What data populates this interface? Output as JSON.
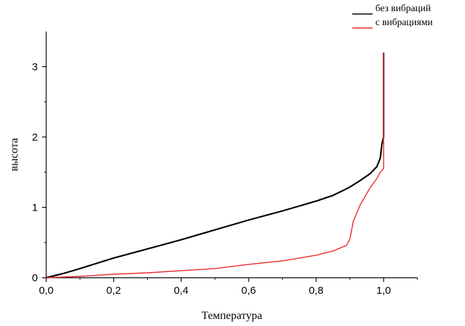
{
  "chart_data": {
    "type": "line",
    "title": "",
    "xlabel": "Температура",
    "ylabel": "высота",
    "xlim": [
      0,
      1.1
    ],
    "ylim": [
      0,
      3.5
    ],
    "x_ticks": [
      0,
      0.2,
      0.4,
      0.6,
      0.8,
      1.0
    ],
    "x_tick_labels": [
      "0,0",
      "0,2",
      "0,4",
      "0,6",
      "0,8",
      "1,0"
    ],
    "y_ticks": [
      0,
      1,
      2,
      3
    ],
    "y_tick_labels": [
      "0",
      "1",
      "2",
      "3"
    ],
    "grid": false,
    "legend_position": "top-right",
    "series": [
      {
        "name": "без вибраций",
        "color": "#000000",
        "points": [
          [
            0,
            0
          ],
          [
            0.05,
            0.06
          ],
          [
            0.1,
            0.13
          ],
          [
            0.2,
            0.28
          ],
          [
            0.3,
            0.41
          ],
          [
            0.4,
            0.54
          ],
          [
            0.5,
            0.68
          ],
          [
            0.6,
            0.82
          ],
          [
            0.7,
            0.95
          ],
          [
            0.8,
            1.09
          ],
          [
            0.85,
            1.17
          ],
          [
            0.88,
            1.24
          ],
          [
            0.9,
            1.29
          ],
          [
            0.93,
            1.38
          ],
          [
            0.96,
            1.48
          ],
          [
            0.98,
            1.58
          ],
          [
            0.99,
            1.7
          ],
          [
            0.995,
            1.9
          ],
          [
            1.0,
            2.0
          ],
          [
            1.0,
            3.2
          ]
        ]
      },
      {
        "name": "с вибрациями",
        "color": "#e8292e",
        "points": [
          [
            0,
            0
          ],
          [
            0.05,
            0.01
          ],
          [
            0.1,
            0.02
          ],
          [
            0.2,
            0.05
          ],
          [
            0.3,
            0.07
          ],
          [
            0.4,
            0.1
          ],
          [
            0.5,
            0.13
          ],
          [
            0.6,
            0.19
          ],
          [
            0.7,
            0.24
          ],
          [
            0.8,
            0.32
          ],
          [
            0.85,
            0.38
          ],
          [
            0.89,
            0.46
          ],
          [
            0.9,
            0.55
          ],
          [
            0.91,
            0.8
          ],
          [
            0.93,
            1.03
          ],
          [
            0.96,
            1.28
          ],
          [
            0.98,
            1.41
          ],
          [
            0.99,
            1.5
          ],
          [
            1.0,
            1.55
          ],
          [
            1.0,
            3.2
          ]
        ]
      }
    ]
  }
}
